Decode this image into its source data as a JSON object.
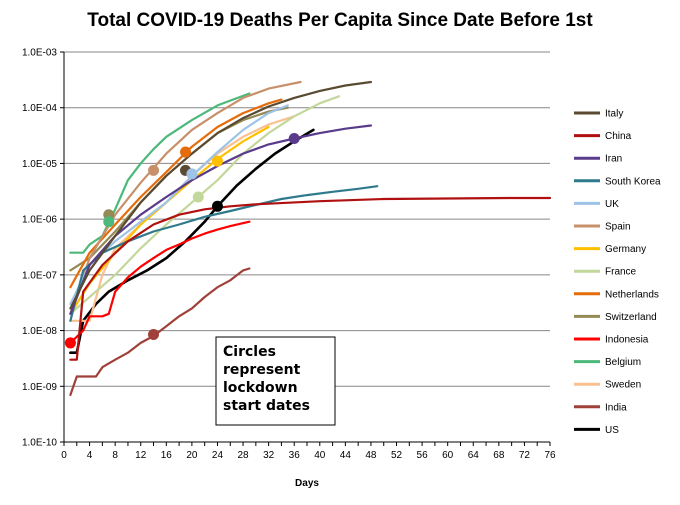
{
  "chart_data": {
    "type": "line",
    "title": "Total COVID-19 Deaths Per Capita Since Date Before 1st",
    "xlabel": "Days",
    "ylabel": "",
    "x_scale": "linear",
    "y_scale": "log",
    "xlim": [
      0,
      76
    ],
    "ylim": [
      1e-10,
      0.001
    ],
    "x_ticks": [
      "0",
      "4",
      "8",
      "12",
      "16",
      "20",
      "24",
      "28",
      "32",
      "36",
      "40",
      "44",
      "48",
      "52",
      "56",
      "60",
      "64",
      "68",
      "72",
      "76"
    ],
    "y_ticks": [
      "1.0E-10",
      "1.0E-09",
      "1.0E-08",
      "1.0E-07",
      "1.0E-06",
      "1.0E-05",
      "1.0E-04",
      "1.0E-03"
    ],
    "y_tick_values": [
      1e-10,
      1e-09,
      1e-08,
      1e-07,
      1e-06,
      1e-05,
      0.0001,
      0.001
    ],
    "grid": "horizontal",
    "legend": "right",
    "annotation": [
      "Circles",
      "represent",
      "lockdown",
      "start dates"
    ],
    "series": [
      {
        "name": "Italy",
        "color": "#5a4a32",
        "points": [
          [
            1,
            2.5e-08
          ],
          [
            4,
            1.2e-07
          ],
          [
            8,
            5e-07
          ],
          [
            12,
            2e-06
          ],
          [
            16,
            6e-06
          ],
          [
            20,
            1.5e-05
          ],
          [
            24,
            3.5e-05
          ],
          [
            28,
            6.5e-05
          ],
          [
            32,
            0.000105
          ],
          [
            36,
            0.00015
          ],
          [
            40,
            0.0002
          ],
          [
            44,
            0.00025
          ],
          [
            48,
            0.00029
          ]
        ],
        "lockdown": [
          19,
          7.5e-06
        ]
      },
      {
        "name": "China",
        "color": "#b01010",
        "points": [
          [
            1,
            3e-09
          ],
          [
            2,
            3e-09
          ],
          [
            3,
            5e-08
          ],
          [
            6,
            1.5e-07
          ],
          [
            10,
            4e-07
          ],
          [
            14,
            8e-07
          ],
          [
            18,
            1.2e-06
          ],
          [
            22,
            1.5e-06
          ],
          [
            26,
            1.7e-06
          ],
          [
            30,
            1.85e-06
          ],
          [
            40,
            2.1e-06
          ],
          [
            50,
            2.3e-06
          ],
          [
            60,
            2.35e-06
          ],
          [
            70,
            2.4e-06
          ],
          [
            76,
            2.4e-06
          ]
        ]
      },
      {
        "name": "Iran",
        "color": "#5a3a8a",
        "points": [
          [
            1,
            2e-08
          ],
          [
            4,
            1.5e-07
          ],
          [
            8,
            5e-07
          ],
          [
            12,
            1.2e-06
          ],
          [
            16,
            2.5e-06
          ],
          [
            20,
            5e-06
          ],
          [
            24,
            9e-06
          ],
          [
            28,
            1.5e-05
          ],
          [
            32,
            2.2e-05
          ],
          [
            36,
            2.8e-05
          ],
          [
            40,
            3.5e-05
          ],
          [
            44,
            4.2e-05
          ],
          [
            48,
            4.8e-05
          ]
        ],
        "lockdown": [
          36,
          2.8e-05
        ]
      },
      {
        "name": "South Korea",
        "color": "#2e7a8c",
        "points": [
          [
            1,
            1.5e-08
          ],
          [
            3,
            1.2e-07
          ],
          [
            6,
            2.5e-07
          ],
          [
            10,
            4e-07
          ],
          [
            14,
            6e-07
          ],
          [
            18,
            8e-07
          ],
          [
            22,
            1.1e-06
          ],
          [
            26,
            1.4e-06
          ],
          [
            30,
            1.8e-06
          ],
          [
            34,
            2.3e-06
          ],
          [
            38,
            2.7e-06
          ],
          [
            42,
            3.1e-06
          ],
          [
            46,
            3.5e-06
          ],
          [
            49,
            3.9e-06
          ]
        ]
      },
      {
        "name": "UK",
        "color": "#9dc3e6",
        "points": [
          [
            1,
            3e-08
          ],
          [
            4,
            1.5e-07
          ],
          [
            8,
            4e-07
          ],
          [
            12,
            9e-07
          ],
          [
            16,
            2e-06
          ],
          [
            20,
            6e-06
          ],
          [
            24,
            1.6e-05
          ],
          [
            28,
            4e-05
          ],
          [
            32,
            8e-05
          ],
          [
            35,
            0.00011
          ]
        ],
        "lockdown": [
          20,
          6.5e-06
        ]
      },
      {
        "name": "Spain",
        "color": "#c8906a",
        "points": [
          [
            1,
            2e-08
          ],
          [
            4,
            2e-07
          ],
          [
            8,
            1.2e-06
          ],
          [
            12,
            4.5e-06
          ],
          [
            16,
            1.5e-05
          ],
          [
            20,
            4e-05
          ],
          [
            24,
            8e-05
          ],
          [
            28,
            0.00015
          ],
          [
            32,
            0.00022
          ],
          [
            37,
            0.00029
          ]
        ],
        "lockdown": [
          14,
          7.5e-06
        ]
      },
      {
        "name": "Germany",
        "color": "#ffc000",
        "points": [
          [
            1,
            2e-08
          ],
          [
            4,
            7e-08
          ],
          [
            8,
            2.5e-07
          ],
          [
            12,
            8e-07
          ],
          [
            16,
            2e-06
          ],
          [
            20,
            5e-06
          ],
          [
            24,
            1.2e-05
          ],
          [
            28,
            2.5e-05
          ],
          [
            32,
            4.5e-05
          ]
        ],
        "lockdown": [
          24,
          1.1e-05
        ]
      },
      {
        "name": "France",
        "color": "#c4d79b",
        "points": [
          [
            1,
            2e-08
          ],
          [
            4,
            4e-08
          ],
          [
            8,
            1e-07
          ],
          [
            12,
            3e-07
          ],
          [
            16,
            8e-07
          ],
          [
            20,
            2e-06
          ],
          [
            24,
            5e-06
          ],
          [
            28,
            1.5e-05
          ],
          [
            32,
            3.5e-05
          ],
          [
            36,
            7e-05
          ],
          [
            40,
            0.00012
          ],
          [
            43,
            0.00016
          ]
        ],
        "lockdown": [
          21,
          2.5e-06
        ]
      },
      {
        "name": "Netherlands",
        "color": "#e46c0a",
        "points": [
          [
            1,
            6e-08
          ],
          [
            4,
            2.5e-07
          ],
          [
            8,
            8e-07
          ],
          [
            12,
            2.5e-06
          ],
          [
            16,
            7e-06
          ],
          [
            20,
            2e-05
          ],
          [
            24,
            4.5e-05
          ],
          [
            28,
            8e-05
          ],
          [
            32,
            0.00012
          ],
          [
            34,
            0.00014
          ]
        ],
        "lockdown": [
          19,
          1.6e-05
        ]
      },
      {
        "name": "Switzerland",
        "color": "#948a54",
        "points": [
          [
            1,
            1.2e-07
          ],
          [
            4,
            2e-07
          ],
          [
            8,
            6e-07
          ],
          [
            12,
            2e-06
          ],
          [
            16,
            6e-06
          ],
          [
            20,
            1.5e-05
          ],
          [
            24,
            3.5e-05
          ],
          [
            28,
            6e-05
          ],
          [
            32,
            8.5e-05
          ],
          [
            35,
            0.0001
          ]
        ],
        "lockdown": [
          7,
          1.2e-06
        ]
      },
      {
        "name": "Indonesia",
        "color": "#ff0000",
        "points": [
          [
            1,
            6e-09
          ],
          [
            3,
            1e-08
          ],
          [
            4,
            1.8e-08
          ],
          [
            6,
            1.8e-08
          ],
          [
            7,
            2e-08
          ],
          [
            8,
            5e-08
          ],
          [
            10,
            9e-08
          ],
          [
            12,
            1.4e-07
          ],
          [
            14,
            2e-07
          ],
          [
            16,
            2.8e-07
          ],
          [
            18,
            3.5e-07
          ],
          [
            20,
            4.5e-07
          ],
          [
            22,
            5.5e-07
          ],
          [
            24,
            6.5e-07
          ],
          [
            26,
            7.5e-07
          ],
          [
            29,
            9e-07
          ]
        ],
        "lockdown": [
          1,
          6e-09
        ]
      },
      {
        "name": "Belgium",
        "color": "#4cb87a",
        "points": [
          [
            1,
            2.5e-07
          ],
          [
            3,
            2.5e-07
          ],
          [
            4,
            3.5e-07
          ],
          [
            6,
            5e-07
          ],
          [
            8,
            1.5e-06
          ],
          [
            10,
            5e-06
          ],
          [
            12,
            1e-05
          ],
          [
            14,
            1.8e-05
          ],
          [
            16,
            3e-05
          ],
          [
            20,
            6e-05
          ],
          [
            24,
            0.00011
          ],
          [
            29,
            0.00018
          ]
        ],
        "lockdown": [
          7,
          9e-07
        ]
      },
      {
        "name": "Sweden",
        "color": "#fac090",
        "points": [
          [
            1,
            1.5e-08
          ],
          [
            4,
            1.5e-08
          ],
          [
            6,
            1e-07
          ],
          [
            8,
            3e-07
          ],
          [
            12,
            8e-07
          ],
          [
            16,
            2e-06
          ],
          [
            20,
            6e-06
          ],
          [
            24,
            1.5e-05
          ],
          [
            28,
            3e-05
          ],
          [
            32,
            5e-05
          ],
          [
            36,
            7e-05
          ]
        ]
      },
      {
        "name": "India",
        "color": "#a0403a",
        "points": [
          [
            1,
            7e-10
          ],
          [
            2,
            1.5e-09
          ],
          [
            4,
            1.5e-09
          ],
          [
            5,
            1.5e-09
          ],
          [
            6,
            2.2e-09
          ],
          [
            8,
            3e-09
          ],
          [
            10,
            4e-09
          ],
          [
            12,
            6e-09
          ],
          [
            14,
            8e-09
          ],
          [
            16,
            1.2e-08
          ],
          [
            18,
            1.8e-08
          ],
          [
            20,
            2.5e-08
          ],
          [
            22,
            4e-08
          ],
          [
            24,
            6e-08
          ],
          [
            26,
            8e-08
          ],
          [
            28,
            1.2e-07
          ],
          [
            29,
            1.3e-07
          ]
        ],
        "lockdown": [
          14,
          8.5e-09
        ]
      },
      {
        "name": "US",
        "color": "#000000",
        "points": [
          [
            1,
            4e-09
          ],
          [
            2,
            4e-09
          ],
          [
            3,
            1.5e-08
          ],
          [
            5,
            3e-08
          ],
          [
            7,
            5e-08
          ],
          [
            10,
            8e-08
          ],
          [
            13,
            1.2e-07
          ],
          [
            16,
            2e-07
          ],
          [
            19,
            4e-07
          ],
          [
            22,
            9e-07
          ],
          [
            24,
            1.7e-06
          ],
          [
            27,
            4e-06
          ],
          [
            30,
            8e-06
          ],
          [
            33,
            1.5e-05
          ],
          [
            36,
            2.5e-05
          ],
          [
            39,
            4e-05
          ]
        ],
        "lockdown": [
          24,
          1.7e-06
        ]
      }
    ]
  }
}
